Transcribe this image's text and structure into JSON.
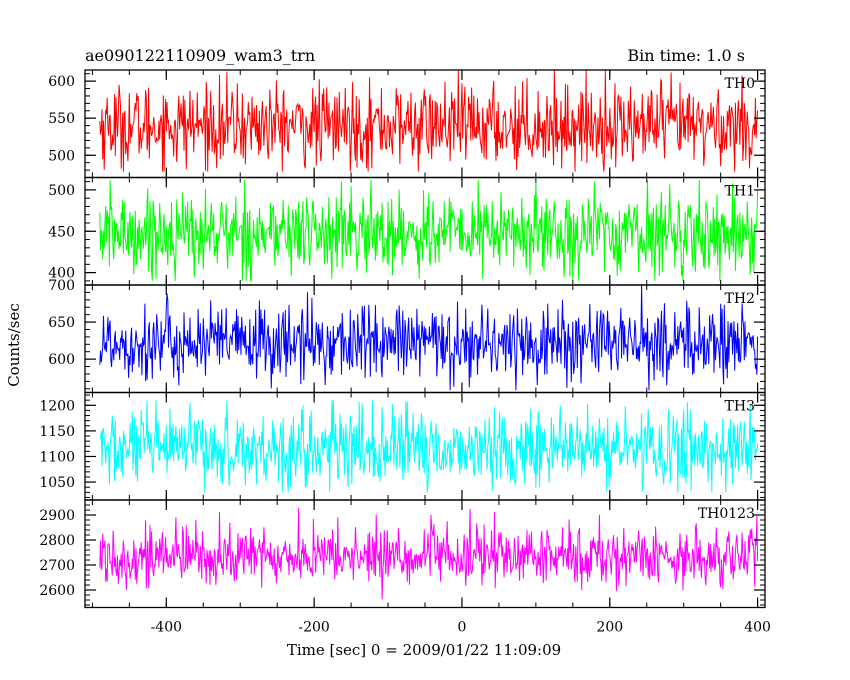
{
  "header": {
    "left": "ae090122110909_wam3_trn",
    "right": "Bin time: 1.0 s"
  },
  "axes": {
    "ylabel": "Counts/sec",
    "xlabel": "Time [sec] 0 = 2009/01/22 11:09:09",
    "xticks": [
      -400,
      -200,
      0,
      200,
      400
    ],
    "xlim": [
      -510,
      410
    ]
  },
  "chart_data": {
    "type": "line",
    "title": "ae090122110909_wam3_trn",
    "xlabel": "Time [sec] 0 = 2009/01/22 11:09:09",
    "ylabel": "Counts/sec",
    "x_range": [
      -490,
      400
    ],
    "bin_time_s": 1.0,
    "panels": [
      {
        "name": "TH0",
        "color": "#ff0000",
        "ylim": [
          470,
          615
        ],
        "yticks": [
          500,
          550,
          600
        ],
        "mean": 540,
        "spread": 28,
        "min": 478,
        "max": 615
      },
      {
        "name": "TH1",
        "color": "#00ff00",
        "ylim": [
          385,
          515
        ],
        "yticks": [
          400,
          450,
          500
        ],
        "mean": 448,
        "spread": 25,
        "min": 390,
        "max": 512
      },
      {
        "name": "TH2",
        "color": "#0000ff",
        "ylim": [
          555,
          700
        ],
        "yticks": [
          600,
          650,
          700
        ],
        "mean": 622,
        "spread": 26,
        "min": 558,
        "max": 700
      },
      {
        "name": "TH3",
        "color": "#00ffff",
        "ylim": [
          1015,
          1225
        ],
        "yticks": [
          1050,
          1100,
          1150,
          1200
        ],
        "mean": 1115,
        "spread": 38,
        "min": 1030,
        "max": 1210
      },
      {
        "name": "TH0123",
        "color": "#ff00ff",
        "ylim": [
          2530,
          2960
        ],
        "yticks": [
          2600,
          2700,
          2800,
          2900
        ],
        "mean": 2735,
        "spread": 60,
        "min": 2560,
        "max": 2950
      }
    ]
  }
}
